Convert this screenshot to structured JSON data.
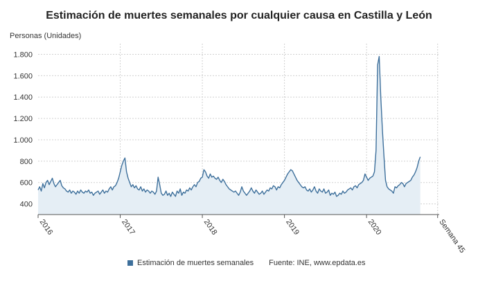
{
  "title": "Estimación de muertes semanales por cualquier causa en Castilla y León",
  "ylabel": "Personas (Unidades)",
  "legend_label": "Estimación de muertes semanales",
  "source": "Fuente: INE, www.epdata.es",
  "colors": {
    "line": "#3d6f9b",
    "area": "#e5eef5",
    "grid": "#d0d0d0",
    "axis": "#555555",
    "text": "#333333"
  },
  "chart_data": {
    "type": "area",
    "title": "Estimación de muertes semanales por cualquier causa en Castilla y León",
    "ylabel": "Personas (Unidades)",
    "xlabel": "",
    "ylim": [
      300,
      1900
    ],
    "yticks": [
      400,
      600,
      800,
      1000,
      1200,
      1400,
      1600,
      1800
    ],
    "ytick_labels": [
      "400",
      "600",
      "800",
      "1.000",
      "1.200",
      "1.400",
      "1.600",
      "1.800"
    ],
    "xlim": [
      0,
      254
    ],
    "xticks": [
      {
        "week": 0,
        "label": "2016",
        "gridline": false
      },
      {
        "week": 52,
        "label": "2017",
        "gridline": true
      },
      {
        "week": 104,
        "label": "2018",
        "gridline": true
      },
      {
        "week": 156,
        "label": "2019",
        "gridline": true
      },
      {
        "week": 208,
        "label": "2020",
        "gridline": true
      },
      {
        "week": 253,
        "label": "Semana 45",
        "gridline": true
      }
    ],
    "grid": true,
    "legend_position": "bottom",
    "series": [
      {
        "name": "Estimación de muertes semanales",
        "values": [
          530,
          560,
          520,
          590,
          550,
          600,
          620,
          580,
          610,
          640,
          590,
          560,
          580,
          600,
          620,
          570,
          550,
          540,
          520,
          510,
          530,
          500,
          520,
          510,
          490,
          520,
          500,
          530,
          510,
          500,
          520,
          510,
          530,
          500,
          510,
          480,
          500,
          510,
          520,
          490,
          510,
          530,
          500,
          520,
          510,
          540,
          560,
          530,
          560,
          570,
          600,
          640,
          700,
          760,
          800,
          830,
          700,
          640,
          600,
          560,
          580,
          550,
          570,
          540,
          530,
          560,
          520,
          540,
          510,
          530,
          520,
          500,
          520,
          510,
          490,
          520,
          650,
          580,
          500,
          480,
          490,
          520,
          480,
          500,
          470,
          510,
          490,
          470,
          520,
          500,
          540,
          480,
          510,
          500,
          530,
          520,
          550,
          530,
          560,
          580,
          560,
          600,
          610,
          640,
          650,
          720,
          700,
          660,
          640,
          680,
          650,
          660,
          640,
          630,
          650,
          620,
          600,
          630,
          610,
          580,
          560,
          540,
          530,
          520,
          510,
          520,
          500,
          480,
          510,
          560,
          520,
          500,
          480,
          500,
          520,
          550,
          520,
          500,
          530,
          510,
          490,
          500,
          520,
          490,
          510,
          530,
          520,
          550,
          540,
          570,
          560,
          530,
          560,
          550,
          580,
          600,
          620,
          650,
          680,
          700,
          720,
          710,
          680,
          650,
          620,
          600,
          580,
          560,
          550,
          560,
          530,
          520,
          540,
          510,
          530,
          560,
          520,
          500,
          540,
          520,
          510,
          540,
          500,
          510,
          530,
          480,
          500,
          490,
          510,
          470,
          480,
          500,
          490,
          520,
          500,
          510,
          530,
          540,
          550,
          530,
          560,
          570,
          550,
          580,
          590,
          600,
          620,
          680,
          650,
          620,
          640,
          650,
          660,
          700,
          900,
          1700,
          1780,
          1400,
          1100,
          850,
          620,
          560,
          540,
          530,
          520,
          500,
          560,
          550,
          570,
          580,
          600,
          590,
          560,
          590,
          600,
          610,
          620,
          650,
          670,
          700,
          740,
          800,
          840
        ]
      }
    ]
  }
}
